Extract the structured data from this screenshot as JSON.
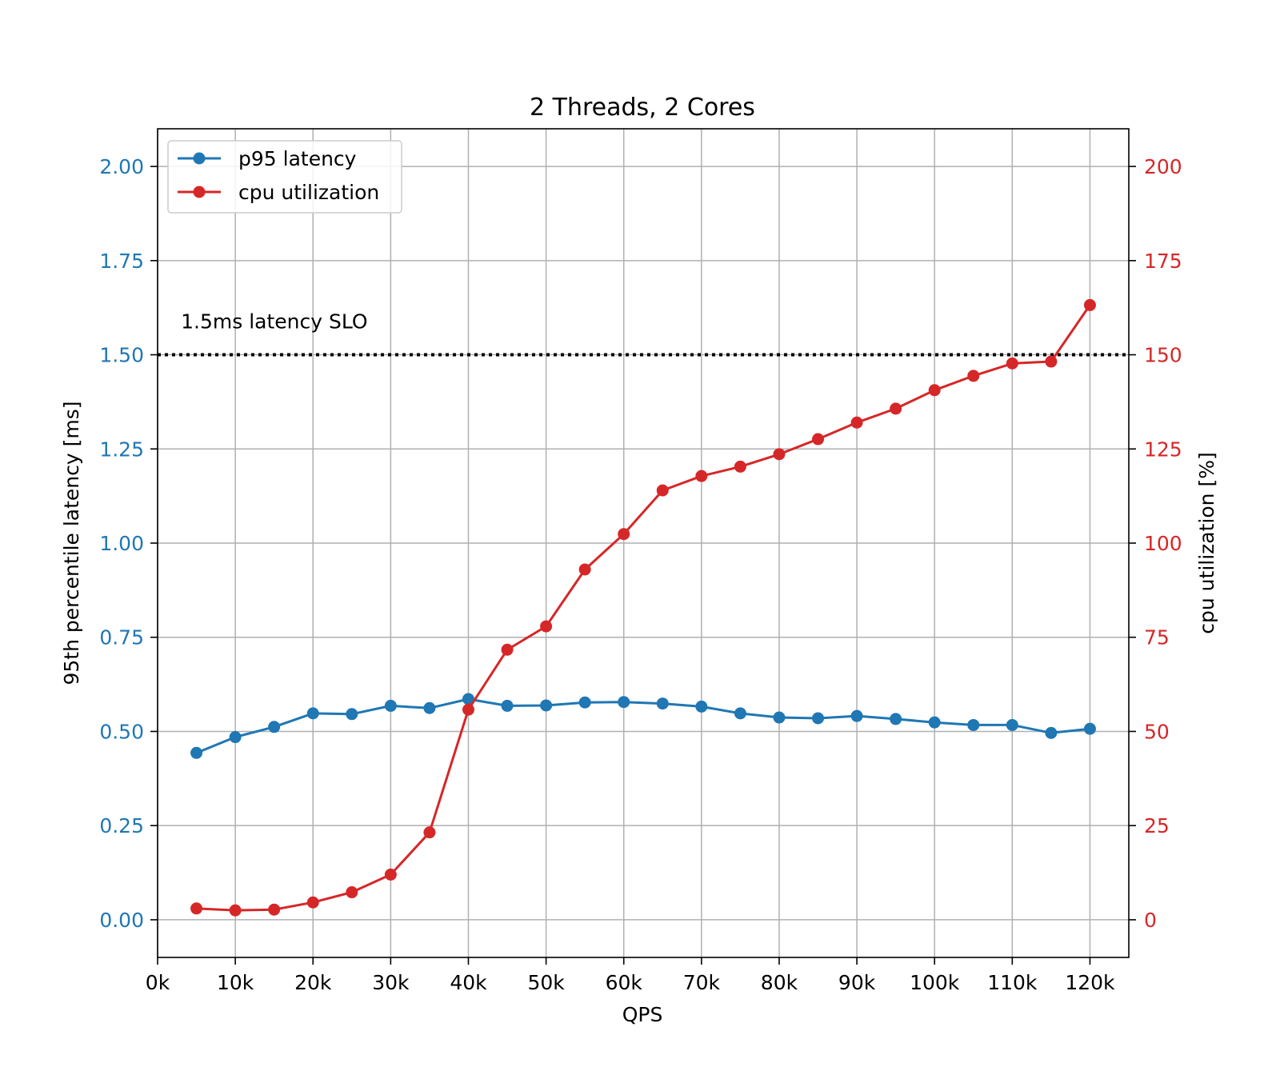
{
  "chart_data": {
    "type": "line",
    "title": "2 Threads, 2 Cores",
    "xlabel": "QPS",
    "ylabel_left": "95th percentile latency [ms]",
    "ylabel_right": "cpu utilization [%]",
    "xlim": [
      0,
      125000
    ],
    "ylim_left": [
      -0.1,
      2.1
    ],
    "ylim_right": [
      -10,
      210
    ],
    "x_ticks": [
      0,
      10000,
      20000,
      30000,
      40000,
      50000,
      60000,
      70000,
      80000,
      90000,
      100000,
      110000,
      120000
    ],
    "x_tick_labels": [
      "0k",
      "10k",
      "20k",
      "30k",
      "40k",
      "50k",
      "60k",
      "70k",
      "80k",
      "90k",
      "100k",
      "110k",
      "120k"
    ],
    "y_left_ticks": [
      0.0,
      0.25,
      0.5,
      0.75,
      1.0,
      1.25,
      1.5,
      1.75,
      2.0
    ],
    "y_left_tick_labels": [
      "0.00",
      "0.25",
      "0.50",
      "0.75",
      "1.00",
      "1.25",
      "1.50",
      "1.75",
      "2.00"
    ],
    "y_right_ticks": [
      0,
      25,
      50,
      75,
      100,
      125,
      150,
      175,
      200
    ],
    "y_right_tick_labels": [
      "0",
      "25",
      "50",
      "75",
      "100",
      "125",
      "150",
      "175",
      "200"
    ],
    "grid": true,
    "legend_position": "upper-left",
    "x": [
      5000,
      10000,
      15000,
      20000,
      25000,
      30000,
      35000,
      40000,
      45000,
      50000,
      55000,
      60000,
      65000,
      70000,
      75000,
      80000,
      85000,
      90000,
      95000,
      100000,
      105000,
      110000,
      115000,
      120000
    ],
    "series": [
      {
        "name": "p95 latency",
        "axis": "left",
        "color": "#1f77b4",
        "values": [
          0.443,
          0.485,
          0.512,
          0.548,
          0.546,
          0.568,
          0.562,
          0.586,
          0.568,
          0.569,
          0.577,
          0.578,
          0.574,
          0.566,
          0.548,
          0.537,
          0.535,
          0.541,
          0.533,
          0.524,
          0.517,
          0.517,
          0.496,
          0.507
        ]
      },
      {
        "name": "cpu utilization",
        "axis": "right",
        "color": "#d62728",
        "values": [
          3.0,
          2.5,
          2.7,
          4.6,
          7.3,
          12.0,
          23.2,
          55.8,
          71.7,
          77.9,
          93.0,
          102.4,
          114.0,
          117.8,
          120.3,
          123.6,
          127.6,
          132.0,
          135.7,
          140.6,
          144.4,
          147.7,
          148.2,
          163.2
        ]
      }
    ],
    "annotations": [
      {
        "text": "1.5ms latency SLO",
        "x": 3000,
        "y": 1.57
      }
    ],
    "hlines": [
      {
        "y": 1.5,
        "axis": "left",
        "style": "dotted",
        "color": "#000000"
      }
    ],
    "colors": {
      "left_axis": "#1f77b4",
      "right_axis": "#d62728",
      "grid": "#b0b0b0"
    }
  }
}
